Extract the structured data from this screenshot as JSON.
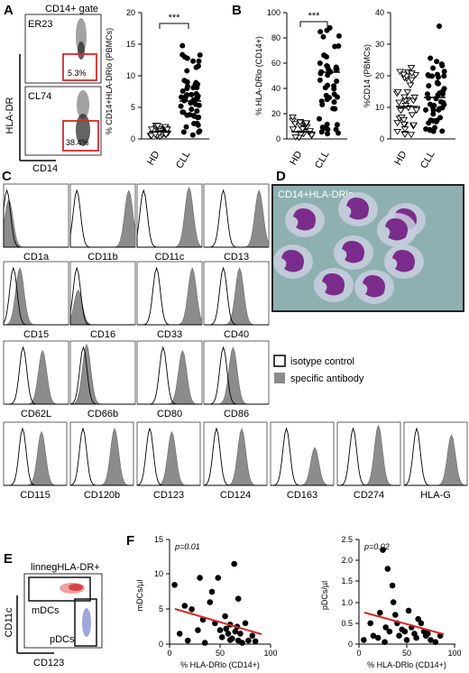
{
  "panel_letters": [
    "A",
    "B",
    "C",
    "D",
    "E",
    "F"
  ],
  "panel_a": {
    "gate_title": "CD14+ gate",
    "top_sample": "ER23",
    "top_pct": "5.3%",
    "bottom_sample": "CL74",
    "bottom_pct": "38.4%",
    "y_axis": "HLA-DR",
    "x_axis": "CD14",
    "scatter_ylabel": "% CD14+HLA-DRlo (PBMCs)",
    "yticks": [
      "0",
      "5",
      "10",
      "15",
      "20"
    ],
    "groups": [
      "HD",
      "CLL"
    ],
    "significance": "***"
  },
  "panel_b": {
    "left_ylabel": "% HLA-DRlo (CD14+)",
    "left_yticks": [
      "0",
      "20",
      "40",
      "60",
      "80",
      "100"
    ],
    "right_ylabel": "%CD14 (PBMCs)",
    "right_yticks": [
      "0",
      "10",
      "20",
      "30",
      "40"
    ],
    "groups": [
      "HD",
      "CLL"
    ],
    "significance": "***"
  },
  "panel_c": {
    "markers_rows": [
      [
        "CD1a",
        "CD11b",
        "CD11c",
        "CD13"
      ],
      [
        "CD15",
        "CD16",
        "CD33",
        "CD40"
      ],
      [
        "CD62L",
        "CD66b",
        "CD80",
        "CD86"
      ],
      [
        "CD115",
        "CD120b",
        "CD123",
        "CD124",
        "CD163",
        "CD274",
        "HLA-G"
      ]
    ],
    "legend": [
      "isotype control",
      "specific antibody"
    ]
  },
  "panel_d": {
    "label": "CD14+HLA-DRlo"
  },
  "panel_e": {
    "title": "linnegHLA-DR+",
    "y_axis": "CD11c",
    "x_axis": "CD123",
    "gate_1": "mDCs",
    "gate_2": "pDCs"
  },
  "panel_f": {
    "left": {
      "ylabel": "mDCs/µl",
      "p": "p=0.01",
      "yticks": [
        "0",
        "5",
        "10",
        "15"
      ],
      "xticks": [
        "0",
        "50",
        "100"
      ],
      "xlabel": "% HLA-DRlo (CD14+)"
    },
    "right": {
      "ylabel": "pDCs/µl",
      "p": "p=0.02",
      "yticks": [
        "0",
        "0.5",
        "1.0",
        "1.5",
        "2.0",
        "2.5"
      ],
      "xticks": [
        "0",
        "50",
        "100"
      ],
      "xlabel": "% HLA-DRlo (CD14+)"
    }
  },
  "colors": {
    "gate_red": "#d42a2a",
    "regression_red": "#d42a2a",
    "filled_grey": "#8c8c8c",
    "cell_purple": "#7a2c8a"
  }
}
